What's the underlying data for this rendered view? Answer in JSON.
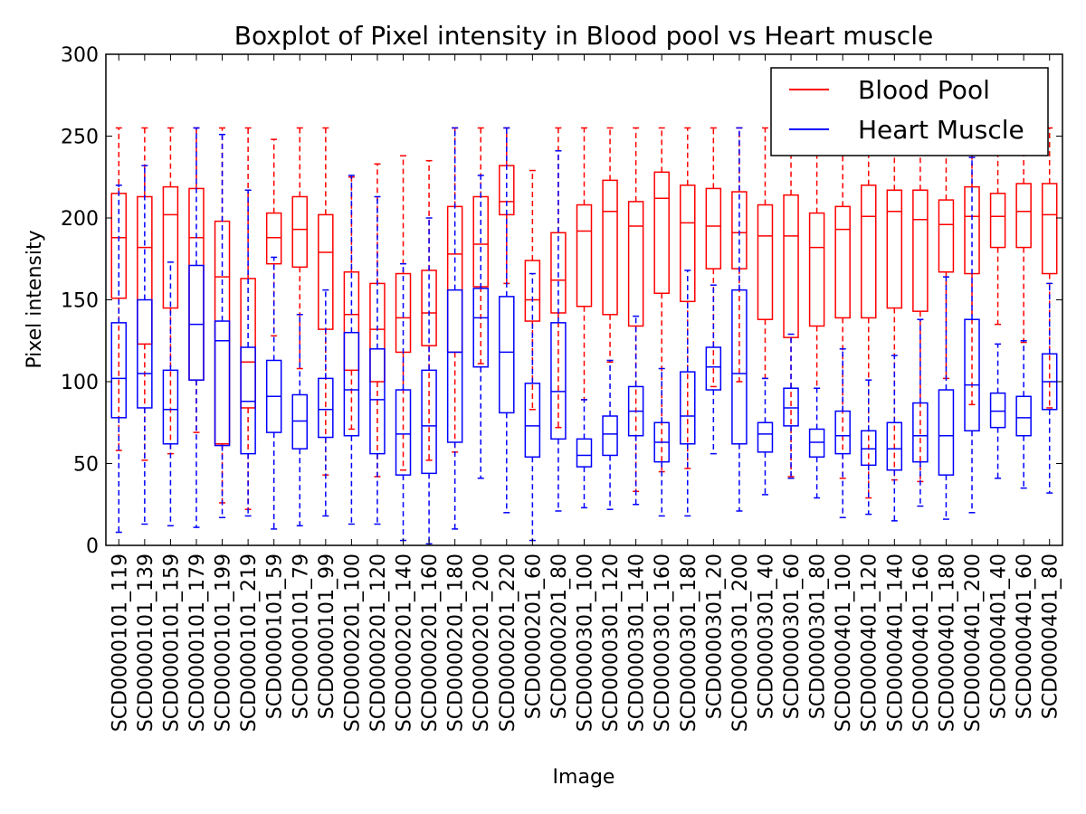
{
  "chart_data": {
    "type": "boxplot",
    "title": "Boxplot of Pixel intensity in Blood pool vs Heart muscle",
    "xlabel": "Image",
    "ylabel": "Pixel intensity",
    "ylim": [
      0,
      300
    ],
    "yticks": [
      0,
      50,
      100,
      150,
      200,
      250,
      300
    ],
    "legend": {
      "placement": "top-right"
    },
    "categories": [
      "SCD0000101_119",
      "SCD0000101_139",
      "SCD0000101_159",
      "SCD0000101_179",
      "SCD0000101_199",
      "SCD0000101_219",
      "SCD0000101_59",
      "SCD0000101_79",
      "SCD0000101_99",
      "SCD0000201_100",
      "SCD0000201_120",
      "SCD0000201_140",
      "SCD0000201_160",
      "SCD0000201_180",
      "SCD0000201_200",
      "SCD0000201_220",
      "SCD0000201_60",
      "SCD0000201_80",
      "SCD0000301_100",
      "SCD0000301_120",
      "SCD0000301_140",
      "SCD0000301_160",
      "SCD0000301_180",
      "SCD0000301_20",
      "SCD0000301_200",
      "SCD0000301_40",
      "SCD0000301_60",
      "SCD0000301_80",
      "SCD0000401_100",
      "SCD0000401_120",
      "SCD0000401_140",
      "SCD0000401_160",
      "SCD0000401_180",
      "SCD0000401_200",
      "SCD0000401_40",
      "SCD0000401_60",
      "SCD0000401_80"
    ],
    "series": [
      {
        "name": "Blood Pool",
        "color": "#ff0000",
        "boxes": [
          [
            58,
            151,
            188,
            215,
            255
          ],
          [
            52,
            123,
            182,
            213,
            255
          ],
          [
            56,
            145,
            202,
            219,
            255
          ],
          [
            69,
            101,
            188,
            218,
            255
          ],
          [
            26,
            62,
            164,
            198,
            255
          ],
          [
            22,
            84,
            112,
            163,
            255
          ],
          [
            128,
            172,
            188,
            203,
            248
          ],
          [
            108,
            170,
            193,
            213,
            255
          ],
          [
            43,
            132,
            179,
            202,
            255
          ],
          [
            71,
            107,
            141,
            167,
            225
          ],
          [
            42,
            100,
            132,
            160,
            233
          ],
          [
            46,
            118,
            139,
            166,
            238
          ],
          [
            52,
            122,
            142,
            168,
            235
          ],
          [
            57,
            118,
            178,
            207,
            255
          ],
          [
            111,
            158,
            184,
            213,
            255
          ],
          [
            160,
            202,
            210,
            232,
            255
          ],
          [
            83,
            137,
            150,
            174,
            229
          ],
          [
            72,
            142,
            162,
            191,
            255
          ],
          [
            89,
            146,
            192,
            208,
            255
          ],
          [
            112,
            141,
            204,
            223,
            255
          ],
          [
            33,
            134,
            195,
            210,
            255
          ],
          [
            45,
            154,
            212,
            228,
            255
          ],
          [
            47,
            149,
            197,
            220,
            255
          ],
          [
            97,
            169,
            195,
            218,
            255
          ],
          [
            100,
            169,
            191,
            216,
            255
          ],
          [
            102,
            138,
            189,
            208,
            255
          ],
          [
            42,
            127,
            189,
            214,
            255
          ],
          [
            96,
            134,
            182,
            203,
            255
          ],
          [
            41,
            139,
            193,
            207,
            255
          ],
          [
            29,
            139,
            201,
            220,
            255
          ],
          [
            40,
            145,
            204,
            217,
            255
          ],
          [
            39,
            143,
            199,
            217,
            255
          ],
          [
            102,
            167,
            196,
            211,
            255
          ],
          [
            86,
            166,
            201,
            219,
            255
          ],
          [
            135,
            182,
            201,
            215,
            255
          ],
          [
            124,
            182,
            204,
            221,
            255
          ],
          [
            84,
            166,
            202,
            221,
            255
          ]
        ]
      },
      {
        "name": "Heart Muscle",
        "color": "#0000ff",
        "boxes": [
          [
            8,
            78,
            102,
            136,
            220
          ],
          [
            13,
            84,
            105,
            150,
            232
          ],
          [
            12,
            62,
            83,
            107,
            173
          ],
          [
            11,
            101,
            135,
            171,
            255
          ],
          [
            17,
            61,
            125,
            137,
            251
          ],
          [
            18,
            56,
            88,
            121,
            217
          ],
          [
            10,
            69,
            91,
            113,
            176
          ],
          [
            12,
            59,
            76,
            92,
            141
          ],
          [
            18,
            66,
            83,
            102,
            156
          ],
          [
            13,
            67,
            95,
            130,
            226
          ],
          [
            13,
            56,
            89,
            120,
            213
          ],
          [
            3,
            43,
            68,
            95,
            172
          ],
          [
            1,
            44,
            73,
            107,
            200
          ],
          [
            10,
            63,
            118,
            156,
            255
          ],
          [
            41,
            109,
            139,
            157,
            226
          ],
          [
            20,
            81,
            118,
            152,
            255
          ],
          [
            3,
            54,
            73,
            99,
            166
          ],
          [
            21,
            65,
            94,
            136,
            241
          ],
          [
            23,
            48,
            55,
            65,
            89
          ],
          [
            22,
            55,
            68,
            79,
            113
          ],
          [
            25,
            67,
            82,
            97,
            140
          ],
          [
            18,
            51,
            63,
            75,
            108
          ],
          [
            18,
            62,
            79,
            106,
            168
          ],
          [
            56,
            95,
            109,
            121,
            159
          ],
          [
            21,
            62,
            105,
            156,
            255
          ],
          [
            31,
            57,
            68,
            75,
            102
          ],
          [
            41,
            73,
            84,
            96,
            129
          ],
          [
            29,
            54,
            63,
            71,
            96
          ],
          [
            17,
            56,
            67,
            82,
            120
          ],
          [
            19,
            49,
            59,
            70,
            101
          ],
          [
            15,
            46,
            59,
            75,
            116
          ],
          [
            24,
            51,
            67,
            87,
            138
          ],
          [
            16,
            43,
            67,
            95,
            164
          ],
          [
            20,
            70,
            98,
            138,
            237
          ],
          [
            41,
            72,
            82,
            93,
            123
          ],
          [
            35,
            67,
            78,
            91,
            125
          ],
          [
            32,
            83,
            100,
            117,
            160
          ]
        ]
      }
    ]
  }
}
